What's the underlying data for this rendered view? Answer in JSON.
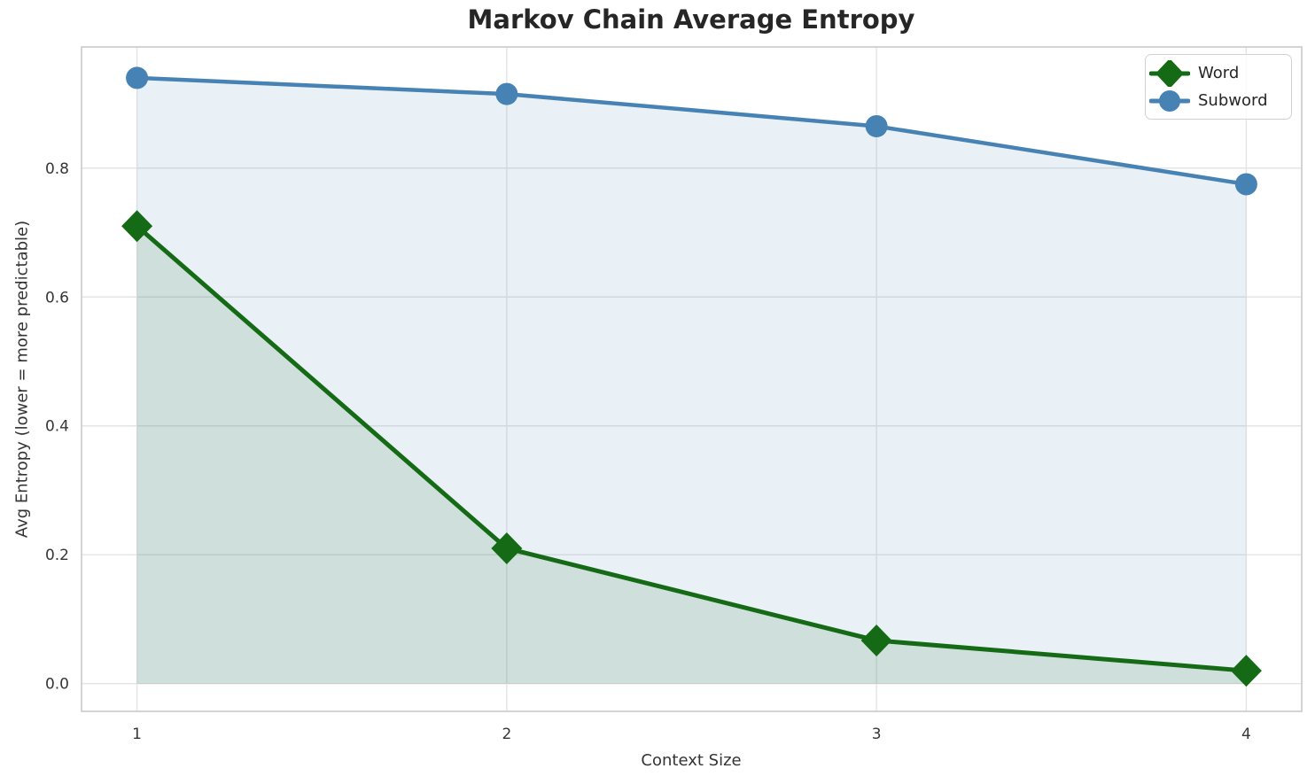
{
  "chart_data": {
    "type": "line",
    "title": "Markov Chain Average Entropy",
    "xlabel": "Context Size",
    "ylabel": "Avg Entropy (lower = more predictable)",
    "x": [
      1,
      2,
      3,
      4
    ],
    "x_tick_labels": [
      "1",
      "2",
      "3",
      "4"
    ],
    "y_ticks": [
      0.0,
      0.2,
      0.4,
      0.6,
      0.8
    ],
    "y_tick_labels": [
      "0.0",
      "0.2",
      "0.4",
      "0.6",
      "0.8"
    ],
    "xlim": [
      0.85,
      4.15
    ],
    "ylim": [
      -0.043,
      0.988
    ],
    "grid": true,
    "legend_position": "upper right",
    "series": [
      {
        "name": "Word",
        "values": [
          0.71,
          0.21,
          0.067,
          0.02
        ],
        "color": "#156b15",
        "marker": "diamond",
        "fill_to_zero": true,
        "fill_opacity": 0.12,
        "line_width": 5
      },
      {
        "name": "Subword",
        "values": [
          0.94,
          0.915,
          0.865,
          0.775
        ],
        "color": "#4682b4",
        "marker": "circle",
        "fill_to_zero": true,
        "fill_opacity": 0.12,
        "line_width": 4.5
      }
    ]
  }
}
